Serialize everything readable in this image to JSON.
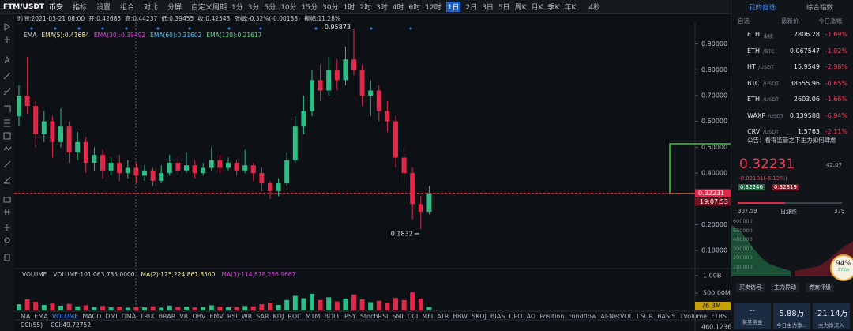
{
  "toolbar": {
    "symbol": "FTM/USDT",
    "exchange": "币安",
    "tools": [
      "指标",
      "设置",
      "组合",
      "对比",
      "分屏",
      "自定义周期"
    ],
    "periods": [
      "1分",
      "3分",
      "5分",
      "10分",
      "15分",
      "30分",
      "1时",
      "2时",
      "3时",
      "4时",
      "6时",
      "12时",
      "1日",
      "2日",
      "3日",
      "5日",
      "周K",
      "月K",
      "季K",
      "年K"
    ],
    "active_period": "1日",
    "timer": "4秒"
  },
  "info": [
    "时间:2021-03-21 08:00",
    "开:0.42685",
    "高:0.44237",
    "低:0.39455",
    "收:0.42543",
    "涨幅:-0.32%(-0.00138)",
    "振幅:11.28%"
  ],
  "ema_legend": [
    {
      "text": "EMA",
      "color": "#c8ccd4"
    },
    {
      "text": "EMA(5):0.41684",
      "color": "#f0e6a0"
    },
    {
      "text": "EMA(30):0.39492",
      "color": "#d848d8"
    },
    {
      "text": "EMA(60):0.31602",
      "color": "#4fc3f7"
    },
    {
      "text": "EMA(120):0.21617",
      "color": "#66d98a"
    }
  ],
  "chart": {
    "up_color": "#2ebd85",
    "down_color": "#e0294a",
    "ylim": [
      0.03,
      0.96
    ],
    "yticks": [
      {
        "value": 0.9,
        "label": "0.90000"
      },
      {
        "value": 0.8,
        "label": "0.80000"
      },
      {
        "value": 0.7,
        "label": "0.70000"
      },
      {
        "value": 0.6,
        "label": "0.60000"
      },
      {
        "value": 0.5,
        "label": "0.50000"
      },
      {
        "value": 0.4,
        "label": "0.40000"
      },
      {
        "value": 0.2,
        "label": "0.20000"
      },
      {
        "value": 0.1,
        "label": "0.10000"
      }
    ],
    "candles": {
      "open": [
        0.62,
        0.7,
        0.66,
        0.55,
        0.6,
        0.52,
        0.58,
        0.48,
        0.52,
        0.44,
        0.47,
        0.41,
        0.44,
        0.4,
        0.42,
        0.39,
        0.41,
        0.37,
        0.4,
        0.44,
        0.41,
        0.43,
        0.4,
        0.42,
        0.45,
        0.42,
        0.44,
        0.41,
        0.43,
        0.4,
        0.36,
        0.33,
        0.36,
        0.45,
        0.58,
        0.64,
        0.76,
        0.72,
        0.8,
        0.76,
        0.84,
        0.8,
        0.7,
        0.72,
        0.64,
        0.6,
        0.46,
        0.4,
        0.28,
        0.25
      ],
      "high": [
        0.74,
        0.85,
        0.68,
        0.64,
        0.62,
        0.65,
        0.6,
        0.56,
        0.54,
        0.5,
        0.49,
        0.46,
        0.47,
        0.45,
        0.44,
        0.43,
        0.42,
        0.43,
        0.47,
        0.46,
        0.48,
        0.45,
        0.44,
        0.5,
        0.47,
        0.46,
        0.45,
        0.49,
        0.44,
        0.42,
        0.37,
        0.38,
        0.48,
        0.62,
        0.7,
        0.8,
        0.82,
        0.85,
        0.84,
        0.89,
        0.95873,
        0.82,
        0.76,
        0.74,
        0.68,
        0.62,
        0.5,
        0.42,
        0.31,
        0.35
      ],
      "low": [
        0.58,
        0.63,
        0.5,
        0.52,
        0.46,
        0.5,
        0.44,
        0.45,
        0.4,
        0.41,
        0.38,
        0.39,
        0.37,
        0.38,
        0.36,
        0.37,
        0.35,
        0.36,
        0.39,
        0.39,
        0.4,
        0.38,
        0.39,
        0.41,
        0.4,
        0.41,
        0.39,
        0.4,
        0.37,
        0.33,
        0.3,
        0.31,
        0.35,
        0.44,
        0.55,
        0.62,
        0.68,
        0.7,
        0.72,
        0.74,
        0.78,
        0.66,
        0.62,
        0.6,
        0.56,
        0.42,
        0.36,
        0.22,
        0.1832,
        0.24
      ],
      "close": [
        0.7,
        0.66,
        0.55,
        0.6,
        0.52,
        0.58,
        0.48,
        0.52,
        0.44,
        0.47,
        0.41,
        0.44,
        0.4,
        0.42,
        0.39,
        0.41,
        0.37,
        0.4,
        0.44,
        0.41,
        0.43,
        0.4,
        0.42,
        0.45,
        0.42,
        0.44,
        0.41,
        0.43,
        0.4,
        0.36,
        0.33,
        0.36,
        0.45,
        0.58,
        0.64,
        0.76,
        0.72,
        0.8,
        0.76,
        0.84,
        0.8,
        0.7,
        0.72,
        0.64,
        0.6,
        0.46,
        0.4,
        0.28,
        0.25,
        0.32231
      ]
    },
    "time_label": "19:07:53"
  },
  "volume": {
    "legend": [
      "VOLUME",
      "VOLUME:101,063,735.0000",
      "MA(2):125,224,861.8500",
      "MA(3):114,818,286.9667"
    ],
    "legend_colors": [
      "#c8ccd4",
      "#c8ccd4",
      "#f0e6a0",
      "#d848d8"
    ],
    "ylim": [
      0,
      1160000000
    ],
    "yticks": [
      {
        "value": 1000000000,
        "label": "1.00B"
      },
      {
        "value": 500000000,
        "label": "500.00M"
      }
    ],
    "current_label": "76.3M",
    "values": [
      180000000,
      320000000,
      250000000,
      160000000,
      200000000,
      140000000,
      190000000,
      120000000,
      150000000,
      100000000,
      130000000,
      90000000,
      110000000,
      80000000,
      100000000,
      90000000,
      120000000,
      80000000,
      140000000,
      100000000,
      110000000,
      90000000,
      100000000,
      150000000,
      110000000,
      90000000,
      100000000,
      130000000,
      120000000,
      180000000,
      220000000,
      160000000,
      300000000,
      420000000,
      350000000,
      480000000,
      300000000,
      380000000,
      260000000,
      340000000,
      460000000,
      320000000,
      240000000,
      280000000,
      220000000,
      360000000,
      300000000,
      520000000,
      340000000,
      101063735
    ]
  },
  "indicators": [
    "MA",
    "EMA",
    "VOLUME",
    "MACD",
    "DMI",
    "DMA",
    "TRIX",
    "BRAR",
    "VR",
    "OBV",
    "EMV",
    "RSI",
    "WR",
    "SAR",
    "KDJ",
    "ROC",
    "MTM",
    "BOLL",
    "PSY",
    "StochRSI",
    "SMI",
    "CCI",
    "MFI",
    "ATR",
    "BBW",
    "SKDJ",
    "BIAS",
    "DPO",
    "AO",
    "Position",
    "Fundflow",
    "AI-NetVOL",
    "LSUR",
    "BASIS",
    "TVolume",
    "FTBS",
    "TTSI",
    "TTMU"
  ],
  "active_indicator": "VOLUME",
  "cci": {
    "name": "CCI(55)",
    "value": "CCI:49.72752",
    "axis_label": "460.12366"
  },
  "panel": {
    "tabs": [
      "我的自选",
      "综合指数"
    ],
    "columns": [
      "自选",
      "最新价",
      "今日涨幅"
    ],
    "rows": [
      {
        "base": "ETH",
        "quote": "永续",
        "price": "2806.28",
        "change": "-1.69%"
      },
      {
        "base": "ETH",
        "quote": "/BTC",
        "price": "0.067547",
        "change": "-1.02%"
      },
      {
        "base": "HT",
        "quote": "/USDT",
        "price": "15.9549",
        "change": "-2.98%"
      },
      {
        "base": "BTC",
        "quote": "/USDT",
        "price": "38555.96",
        "change": "-0.65%"
      },
      {
        "base": "ETH",
        "quote": "/USDT",
        "price": "2603.06",
        "change": "-1.66%"
      },
      {
        "base": "WAXP",
        "quote": "/USDT",
        "price": "0.139588",
        "change": "-6.94%"
      },
      {
        "base": "CRV",
        "quote": "/USDT",
        "price": "1.5763",
        "change": "-2.11%"
      }
    ],
    "notice": "公告：看得监管之下主力如何肆虐",
    "price": "0.32231",
    "price_change": "-0.02101(-6.12%)",
    "side_value": "42.07",
    "bid": "0.32246",
    "ask": "0.32319",
    "range_low": "307.59",
    "range_label": "日涨跌",
    "range_high": "379",
    "depth_ticks": [
      "600000",
      "500000",
      "400000",
      "300000",
      "200000",
      "100000"
    ],
    "gauge": "94%",
    "gauge_sub": "37K/s",
    "buttons": [
      "买卖信号",
      "主力异动",
      "券商评级"
    ],
    "footer": [
      {
        "value": "--",
        "label": "某某资金"
      },
      {
        "value": "5.88万",
        "label": "今日主力净..."
      },
      {
        "value": "-21.14万",
        "label": "主力净流入"
      }
    ]
  }
}
